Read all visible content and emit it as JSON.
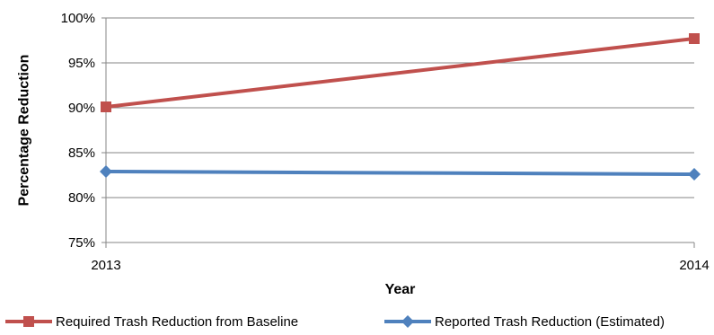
{
  "chart_data": {
    "type": "line",
    "xlabel": "Year",
    "ylabel": "Percentage Reduction",
    "x": [
      "2013",
      "2014"
    ],
    "ylim": [
      75,
      100
    ],
    "yticks": [
      75,
      80,
      85,
      90,
      95,
      100
    ],
    "ytick_labels": [
      "75%",
      "80%",
      "85%",
      "90%",
      "95%",
      "100%"
    ],
    "grid": "horizontal",
    "legend_position": "bottom",
    "series": [
      {
        "name": "Required Trash Reduction from Baseline",
        "values": [
          90.1,
          97.7
        ],
        "color": "#c0504d",
        "marker": "square"
      },
      {
        "name": "Reported Trash Reduction (Estimated)",
        "values": [
          82.9,
          82.6
        ],
        "color": "#4f81bd",
        "marker": "diamond"
      }
    ]
  }
}
